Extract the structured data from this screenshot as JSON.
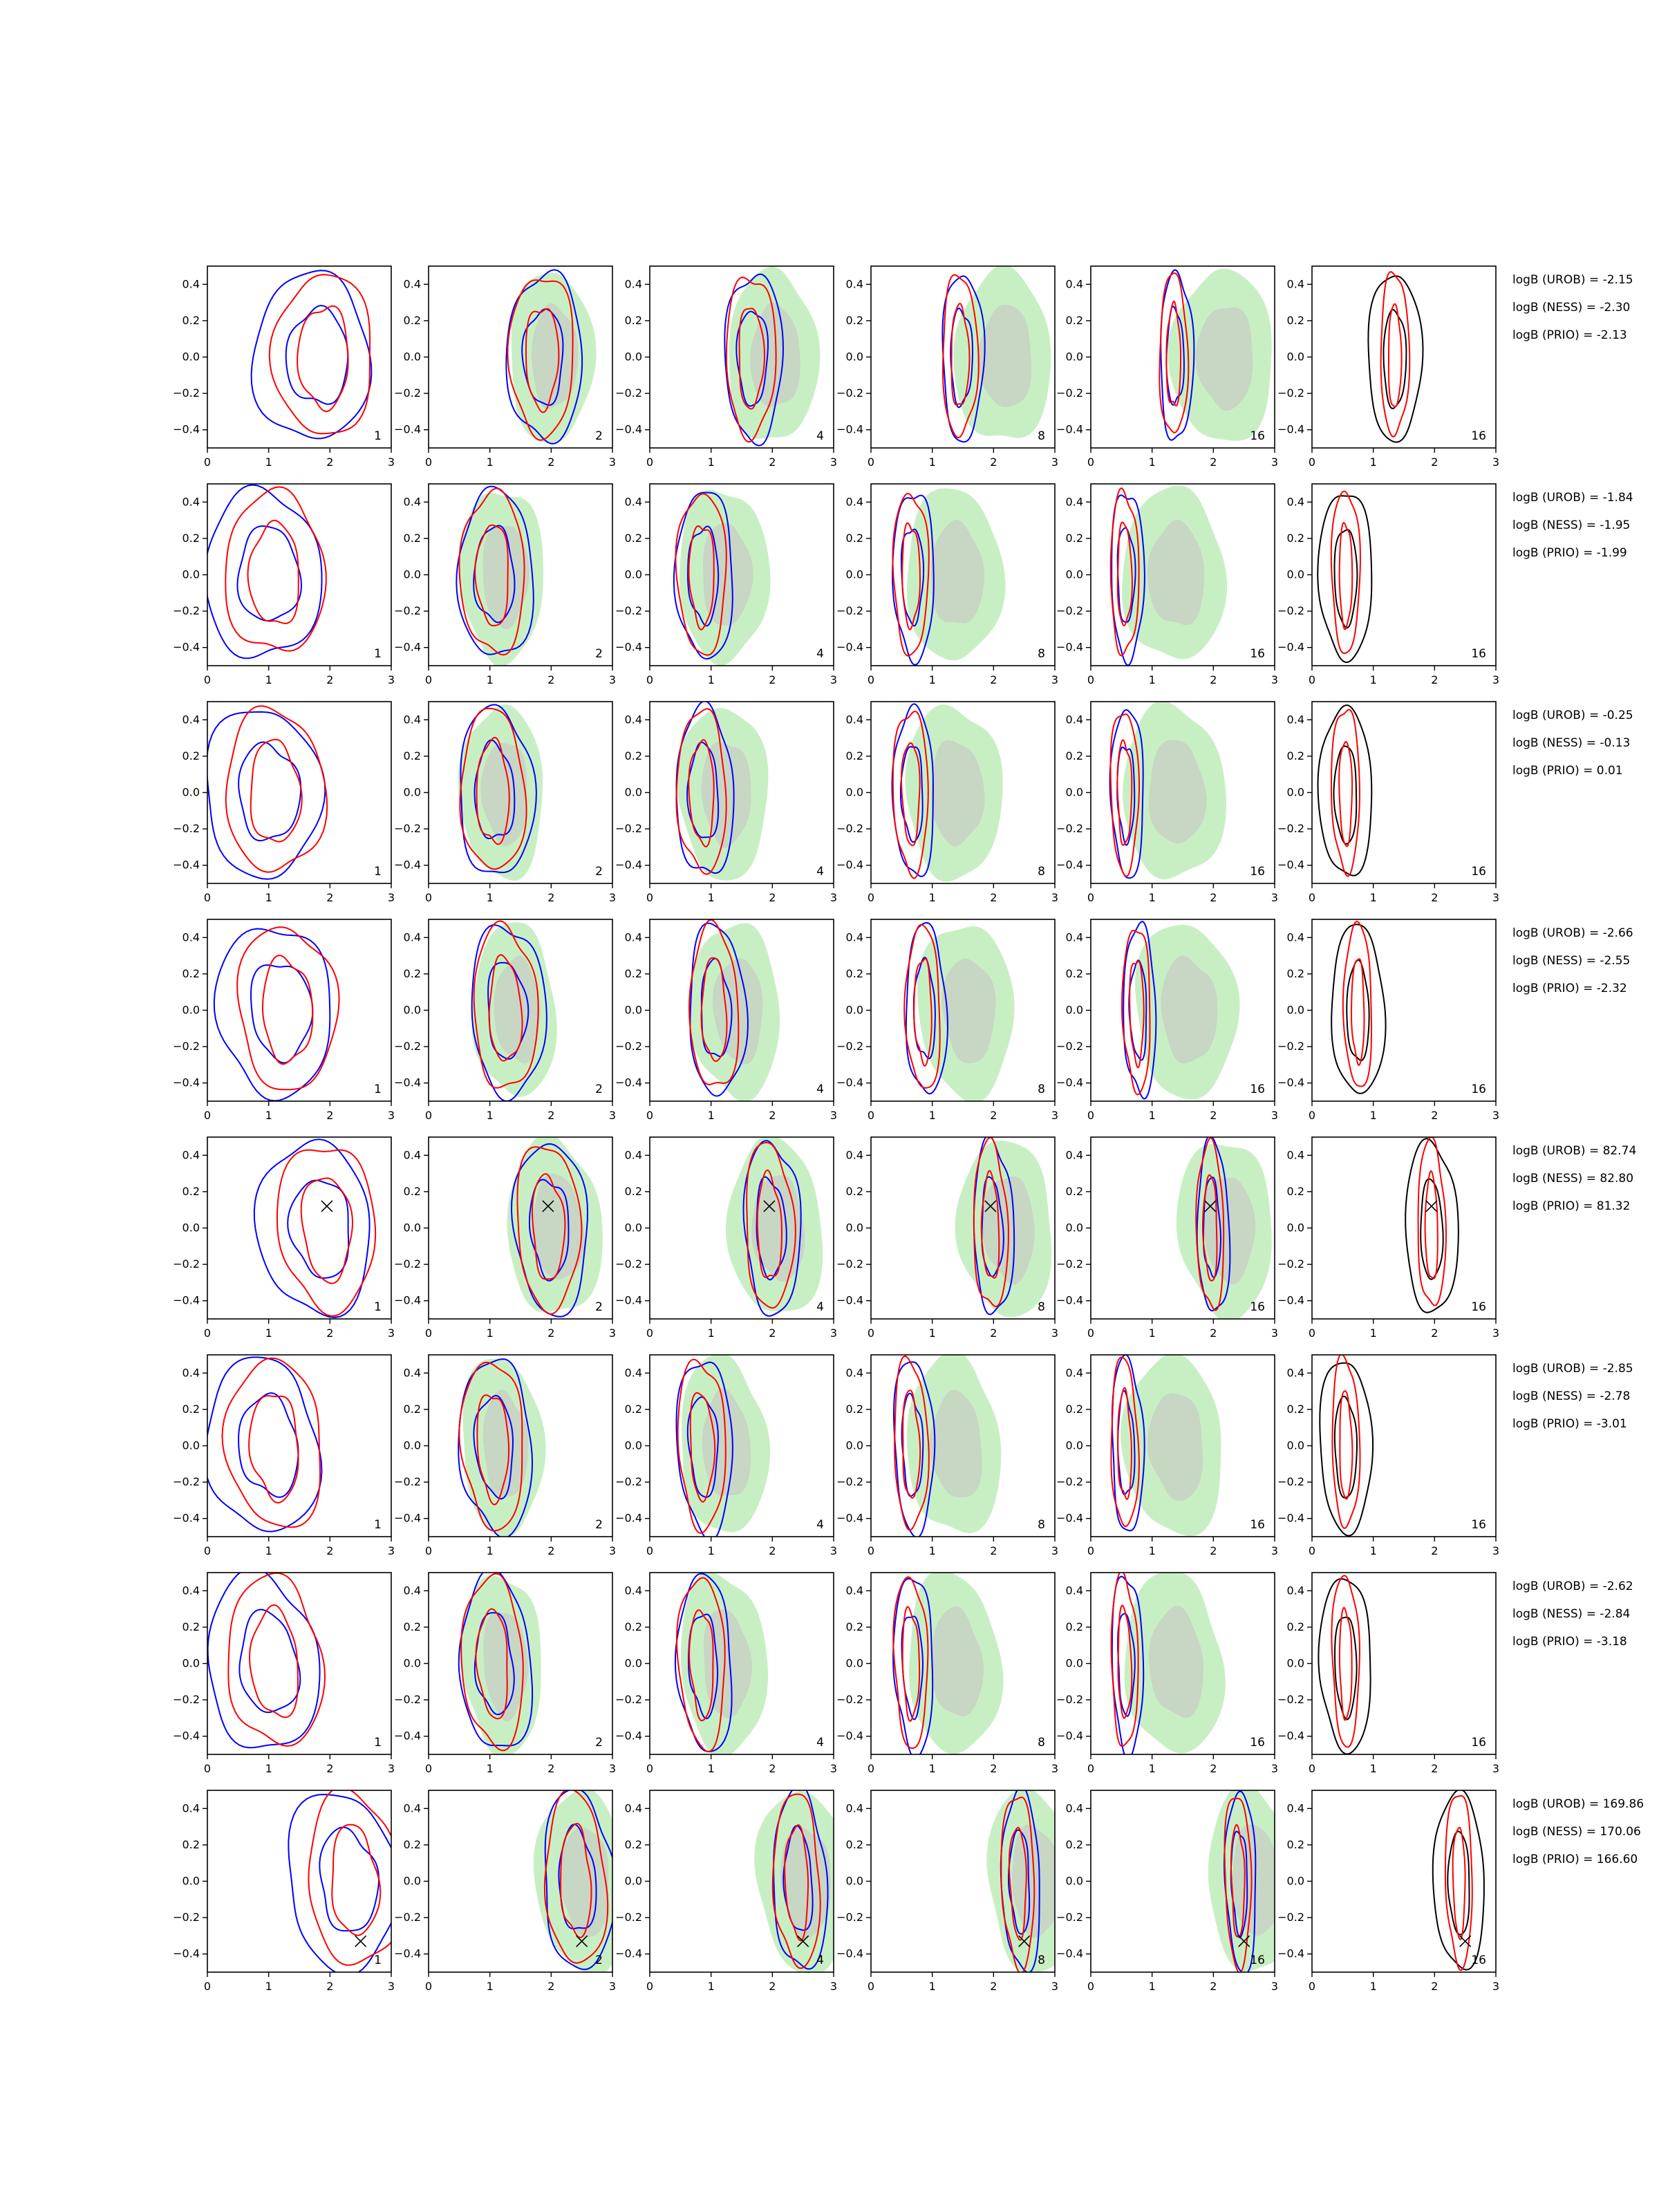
{
  "chart_data": {
    "type": "contour-grid",
    "rows": 8,
    "cols": 6,
    "xlim": [
      0,
      3
    ],
    "ylim": [
      -0.5,
      0.5
    ],
    "xticks": [
      0,
      1,
      2,
      3
    ],
    "yticks": [
      -0.4,
      -0.2,
      0.0,
      0.2,
      0.4
    ],
    "ytick_labels": [
      "−0.4",
      "−0.2",
      "0.0",
      "0.2",
      "0.4"
    ],
    "column_labels": [
      "1",
      "2",
      "4",
      "8",
      "16",
      "16"
    ],
    "colors": {
      "blue_contour": "#0000ff",
      "red_contour": "#ff0000",
      "black_contour": "#000000",
      "green_fill": "#c8efc4",
      "grey_fill": "#c8d6c4"
    },
    "rows_data": [
      {
        "center_x": 1.9,
        "truth": null,
        "logB": [
          "logB (UROB) = -2.15",
          "logB (NESS) = -2.30",
          "logB (PRIO) = -2.13"
        ]
      },
      {
        "center_x": 1.1,
        "truth": null,
        "logB": [
          "logB (UROB) = -1.84",
          "logB (NESS) = -1.95",
          "logB (PRIO) = -1.99"
        ]
      },
      {
        "center_x": 1.1,
        "truth": null,
        "logB": [
          "logB (UROB) = -0.25",
          "logB (NESS) = -0.13",
          "logB (PRIO) = 0.01"
        ]
      },
      {
        "center_x": 1.3,
        "truth": null,
        "logB": [
          "logB (UROB) = -2.66",
          "logB (NESS) = -2.55",
          "logB (PRIO) = -2.32"
        ]
      },
      {
        "center_x": 1.95,
        "truth": [
          1.95,
          0.12
        ],
        "logB": [
          "logB (UROB) = 82.74",
          "logB (NESS) = 82.80",
          "logB (PRIO) = 81.32"
        ]
      },
      {
        "center_x": 1.1,
        "truth": null,
        "logB": [
          "logB (UROB) = -2.85",
          "logB (NESS) = -2.78",
          "logB (PRIO) = -3.01"
        ]
      },
      {
        "center_x": 1.1,
        "truth": null,
        "logB": [
          "logB (UROB) = -2.62",
          "logB (NESS) = -2.84",
          "logB (PRIO) = -3.18"
        ]
      },
      {
        "center_x": 2.4,
        "truth": [
          2.5,
          -0.33
        ],
        "logB": [
          "logB (UROB) = 169.86",
          "logB (NESS) = 170.06",
          "logB (PRIO) = 166.60"
        ]
      }
    ]
  }
}
